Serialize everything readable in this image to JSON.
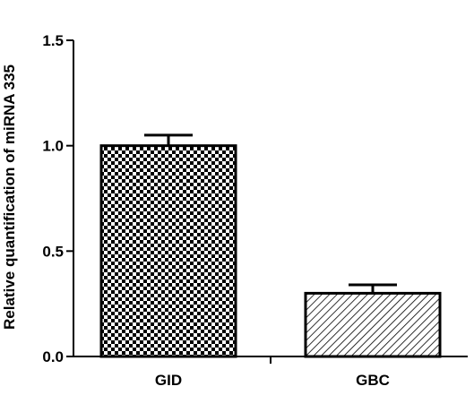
{
  "chart_data": {
    "type": "bar",
    "title": "",
    "xlabel": "",
    "ylabel": "Relative quantification of miRNA 335",
    "categories": [
      "GID",
      "GBC"
    ],
    "values": [
      1.0,
      0.3
    ],
    "errors": [
      0.05,
      0.04
    ],
    "ylim": [
      0,
      1.5
    ],
    "yticks": [
      "0.0",
      "0.5",
      "1.0",
      "1.5"
    ],
    "ytick_values": [
      0,
      0.5,
      1.0,
      1.5
    ],
    "grid": false,
    "legend": "none",
    "bar_patterns": [
      "checkerboard",
      "diagonal-hatch"
    ],
    "colors": {
      "axis": "#000000",
      "bar_fill_dark": "#000000",
      "bar_fill_light": "#ffffff"
    }
  }
}
